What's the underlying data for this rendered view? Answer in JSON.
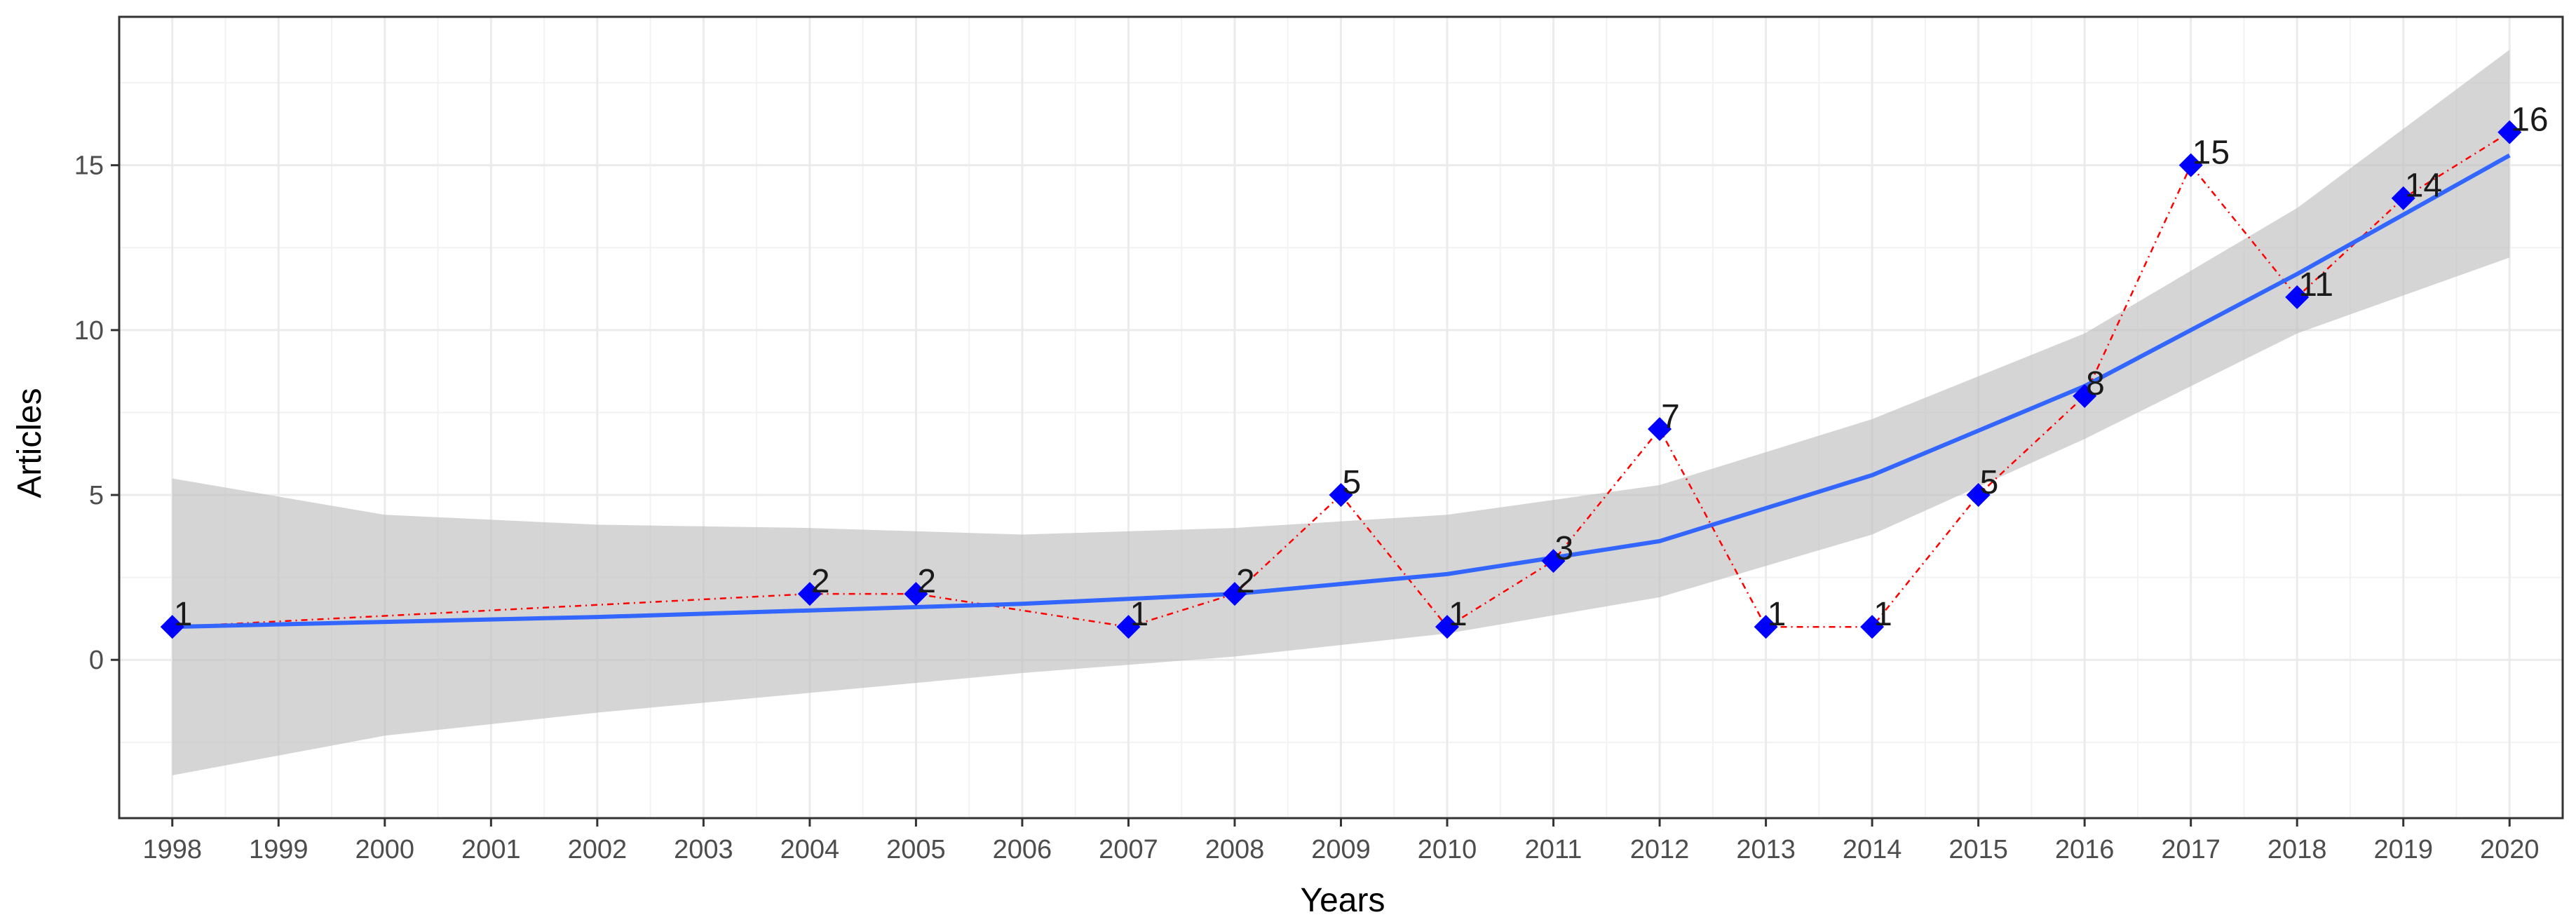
{
  "chart_data": {
    "type": "line",
    "title": "",
    "xlabel": "Years",
    "ylabel": "Articles",
    "x_ticks": [
      "1998",
      "1999",
      "2000",
      "2001",
      "2002",
      "2003",
      "2004",
      "2005",
      "2006",
      "2007",
      "2008",
      "2009",
      "2010",
      "2011",
      "2012",
      "2013",
      "2014",
      "2015",
      "2016",
      "2017",
      "2018",
      "2019",
      "2020"
    ],
    "y_ticks": [
      0,
      5,
      10,
      15
    ],
    "xlim": [
      1997.5,
      2020.5
    ],
    "ylim": [
      -4.8,
      19.5
    ],
    "grid": true,
    "series": [
      {
        "name": "Articles",
        "style": "red dot-dash line with blue diamond markers and value labels",
        "color": "#ff0000",
        "marker_color": "#0000ff",
        "x": [
          1998,
          2004,
          2005,
          2007,
          2008,
          2009,
          2010,
          2011,
          2012,
          2013,
          2014,
          2015,
          2016,
          2017,
          2018,
          2019,
          2020
        ],
        "y": [
          1,
          2,
          2,
          1,
          2,
          5,
          1,
          3,
          7,
          1,
          1,
          5,
          8,
          15,
          11,
          14,
          16
        ],
        "labels": [
          "1",
          "2",
          "2",
          "1",
          "2",
          "5",
          "1",
          "3",
          "7",
          "1",
          "1",
          "5",
          "8",
          "15",
          "11",
          "14",
          "16"
        ]
      },
      {
        "name": "Smoothed trend",
        "style": "blue smooth line with grey confidence band",
        "color": "#3366ff",
        "band_color": "#bfbfbf",
        "x": [
          1998,
          2000,
          2002,
          2004,
          2006,
          2008,
          2010,
          2012,
          2014,
          2016,
          2018,
          2020
        ],
        "y": [
          1.0,
          1.15,
          1.3,
          1.5,
          1.7,
          2.0,
          2.6,
          3.6,
          5.6,
          8.3,
          11.7,
          15.3
        ],
        "lower": [
          -3.5,
          -2.3,
          -1.6,
          -1.0,
          -0.4,
          0.1,
          0.8,
          1.9,
          3.8,
          6.7,
          9.9,
          12.2
        ],
        "upper": [
          5.5,
          4.4,
          4.1,
          4.0,
          3.8,
          4.0,
          4.4,
          5.3,
          7.3,
          9.9,
          13.7,
          18.5
        ]
      }
    ]
  }
}
